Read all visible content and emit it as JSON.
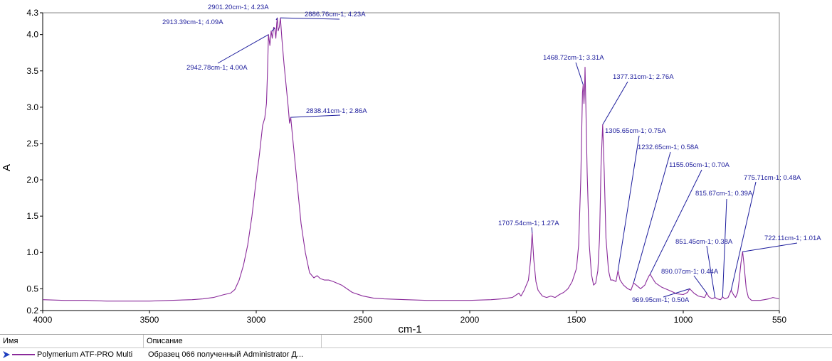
{
  "chart_data": {
    "type": "line",
    "xlabel": "cm-1",
    "ylabel": "A",
    "xlim": [
      4000,
      550
    ],
    "ylim": [
      0.2,
      4.3
    ],
    "x_reversed": true,
    "x_ticks": [
      4000,
      3500,
      3000,
      2500,
      2000,
      1500,
      1000,
      550
    ],
    "x_tick_labels": [
      "4000",
      "3500",
      "3000",
      "2500",
      "2000",
      "1500",
      "1000",
      "550"
    ],
    "y_ticks": [
      0.2,
      0.5,
      1.0,
      1.5,
      2.0,
      2.5,
      3.0,
      3.5,
      4.0,
      4.3
    ],
    "y_tick_labels": [
      "0.2",
      "0.5",
      "1.0",
      "1.5",
      "2.0",
      "2.5",
      "3.0",
      "3.5",
      "4.0",
      "4.3"
    ],
    "grid": false,
    "series": [
      {
        "name": "Polymerium ATF-PRO Multi",
        "color": "#8a2a9a",
        "points": [
          [
            4000,
            0.35
          ],
          [
            3900,
            0.34
          ],
          [
            3800,
            0.34
          ],
          [
            3700,
            0.33
          ],
          [
            3600,
            0.33
          ],
          [
            3500,
            0.33
          ],
          [
            3400,
            0.34
          ],
          [
            3300,
            0.35
          ],
          [
            3250,
            0.36
          ],
          [
            3200,
            0.38
          ],
          [
            3150,
            0.42
          ],
          [
            3120,
            0.44
          ],
          [
            3100,
            0.49
          ],
          [
            3080,
            0.62
          ],
          [
            3060,
            0.82
          ],
          [
            3040,
            1.1
          ],
          [
            3020,
            1.5
          ],
          [
            3000,
            2.0
          ],
          [
            2985,
            2.35
          ],
          [
            2970,
            2.75
          ],
          [
            2960,
            2.85
          ],
          [
            2952,
            3.05
          ],
          [
            2947,
            3.5
          ],
          [
            2942.78,
            4.0
          ],
          [
            2936,
            3.85
          ],
          [
            2930,
            4.05
          ],
          [
            2925,
            3.95
          ],
          [
            2918,
            4.1
          ],
          [
            2913.39,
            4.09
          ],
          [
            2908,
            3.95
          ],
          [
            2904,
            4.15
          ],
          [
            2901.2,
            4.23
          ],
          [
            2897,
            4.05
          ],
          [
            2892,
            4.1
          ],
          [
            2886.76,
            4.23
          ],
          [
            2880,
            3.95
          ],
          [
            2870,
            3.6
          ],
          [
            2860,
            3.3
          ],
          [
            2850,
            3.0
          ],
          [
            2844,
            2.78
          ],
          [
            2838.41,
            2.86
          ],
          [
            2830,
            2.6
          ],
          [
            2810,
            2.0
          ],
          [
            2790,
            1.4
          ],
          [
            2770,
            1.0
          ],
          [
            2750,
            0.72
          ],
          [
            2730,
            0.65
          ],
          [
            2715,
            0.68
          ],
          [
            2700,
            0.64
          ],
          [
            2680,
            0.62
          ],
          [
            2660,
            0.62
          ],
          [
            2640,
            0.6
          ],
          [
            2600,
            0.55
          ],
          [
            2550,
            0.45
          ],
          [
            2500,
            0.4
          ],
          [
            2450,
            0.37
          ],
          [
            2400,
            0.36
          ],
          [
            2300,
            0.35
          ],
          [
            2200,
            0.34
          ],
          [
            2100,
            0.34
          ],
          [
            2000,
            0.34
          ],
          [
            1900,
            0.35
          ],
          [
            1850,
            0.36
          ],
          [
            1800,
            0.38
          ],
          [
            1770,
            0.44
          ],
          [
            1760,
            0.4
          ],
          [
            1745,
            0.48
          ],
          [
            1735,
            0.55
          ],
          [
            1725,
            0.62
          ],
          [
            1715,
            0.9
          ],
          [
            1707.54,
            1.27
          ],
          [
            1700,
            0.9
          ],
          [
            1690,
            0.6
          ],
          [
            1680,
            0.48
          ],
          [
            1660,
            0.4
          ],
          [
            1640,
            0.38
          ],
          [
            1620,
            0.4
          ],
          [
            1600,
            0.38
          ],
          [
            1580,
            0.42
          ],
          [
            1560,
            0.45
          ],
          [
            1540,
            0.5
          ],
          [
            1520,
            0.6
          ],
          [
            1500,
            0.78
          ],
          [
            1490,
            1.1
          ],
          [
            1480,
            2.0
          ],
          [
            1472,
            3.2
          ],
          [
            1468.72,
            3.31
          ],
          [
            1465,
            3.05
          ],
          [
            1462,
            3.25
          ],
          [
            1460,
            3.55
          ],
          [
            1456,
            3.0
          ],
          [
            1450,
            2.1
          ],
          [
            1440,
            1.1
          ],
          [
            1430,
            0.7
          ],
          [
            1420,
            0.55
          ],
          [
            1410,
            0.58
          ],
          [
            1400,
            0.75
          ],
          [
            1392,
            1.2
          ],
          [
            1385,
            2.2
          ],
          [
            1377.31,
            2.76
          ],
          [
            1370,
            2.1
          ],
          [
            1362,
            1.2
          ],
          [
            1350,
            0.75
          ],
          [
            1340,
            0.62
          ],
          [
            1330,
            0.62
          ],
          [
            1315,
            0.6
          ],
          [
            1305.65,
            0.75
          ],
          [
            1296,
            0.62
          ],
          [
            1280,
            0.55
          ],
          [
            1260,
            0.5
          ],
          [
            1245,
            0.48
          ],
          [
            1232.65,
            0.58
          ],
          [
            1220,
            0.55
          ],
          [
            1200,
            0.5
          ],
          [
            1180,
            0.55
          ],
          [
            1170,
            0.62
          ],
          [
            1160,
            0.68
          ],
          [
            1155.05,
            0.7
          ],
          [
            1145,
            0.65
          ],
          [
            1130,
            0.58
          ],
          [
            1100,
            0.52
          ],
          [
            1060,
            0.47
          ],
          [
            1030,
            0.43
          ],
          [
            1000,
            0.42
          ],
          [
            980,
            0.45
          ],
          [
            969.95,
            0.5
          ],
          [
            950,
            0.44
          ],
          [
            930,
            0.4
          ],
          [
            900,
            0.38
          ],
          [
            890.07,
            0.44
          ],
          [
            880,
            0.39
          ],
          [
            865,
            0.36
          ],
          [
            851.45,
            0.38
          ],
          [
            840,
            0.36
          ],
          [
            825,
            0.35
          ],
          [
            815.67,
            0.39
          ],
          [
            805,
            0.36
          ],
          [
            790,
            0.38
          ],
          [
            775.71,
            0.48
          ],
          [
            765,
            0.42
          ],
          [
            755,
            0.38
          ],
          [
            745,
            0.45
          ],
          [
            738,
            0.62
          ],
          [
            730,
            0.85
          ],
          [
            722.11,
            1.01
          ],
          [
            715,
            0.82
          ],
          [
            705,
            0.5
          ],
          [
            695,
            0.38
          ],
          [
            680,
            0.34
          ],
          [
            660,
            0.34
          ],
          [
            640,
            0.34
          ],
          [
            620,
            0.35
          ],
          [
            600,
            0.36
          ],
          [
            580,
            0.38
          ],
          [
            565,
            0.37
          ],
          [
            552,
            0.36
          ]
        ]
      }
    ],
    "annotations": [
      {
        "x": 2901.2,
        "y": 4.23,
        "text": "2901.20cm-1; 4.23A"
      },
      {
        "x": 2886.76,
        "y": 4.23,
        "text": "2886.76cm-1; 4.23A"
      },
      {
        "x": 2913.39,
        "y": 4.09,
        "text": "2913.39cm-1; 4.09A"
      },
      {
        "x": 2942.78,
        "y": 4.0,
        "text": "2942.78cm-1; 4.00A"
      },
      {
        "x": 2838.41,
        "y": 2.86,
        "text": "2838.41cm-1; 2.86A"
      },
      {
        "x": 1468.72,
        "y": 3.31,
        "text": "1468.72cm-1; 3.31A"
      },
      {
        "x": 1377.31,
        "y": 2.76,
        "text": "1377.31cm-1; 2.76A"
      },
      {
        "x": 1305.65,
        "y": 0.75,
        "text": "1305.65cm-1; 0.75A"
      },
      {
        "x": 1232.65,
        "y": 0.58,
        "text": "1232.65cm-1; 0.58A"
      },
      {
        "x": 1155.05,
        "y": 0.7,
        "text": "1155.05cm-1; 0.70A"
      },
      {
        "x": 775.71,
        "y": 0.48,
        "text": "775.71cm-1; 0.48A"
      },
      {
        "x": 815.67,
        "y": 0.39,
        "text": "815.67cm-1; 0.39A"
      },
      {
        "x": 1707.54,
        "y": 1.27,
        "text": "1707.54cm-1; 1.27A"
      },
      {
        "x": 722.11,
        "y": 1.01,
        "text": "722.11cm-1; 1.01A"
      },
      {
        "x": 851.45,
        "y": 0.38,
        "text": "851.45cm-1; 0.38A"
      },
      {
        "x": 890.07,
        "y": 0.44,
        "text": "890.07cm-1; 0.44A"
      },
      {
        "x": 969.95,
        "y": 0.5,
        "text": "969.95cm-1; 0.50A"
      }
    ]
  },
  "legend": {
    "header_name": "Имя",
    "header_desc": "Описание",
    "rows": [
      {
        "name": "Polymerium ATF-PRO Multi",
        "description": "Образец 066 полученный Administrator Д...",
        "icon": "play-arrow-icon",
        "color": "#8a2a9a"
      }
    ]
  }
}
